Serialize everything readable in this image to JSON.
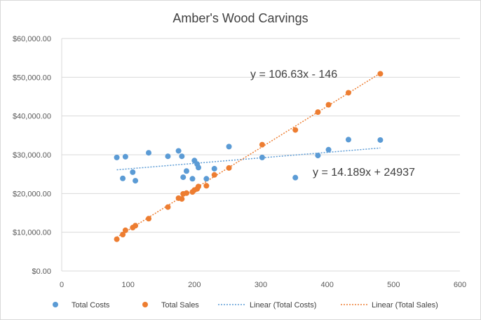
{
  "chart_data": {
    "type": "scatter",
    "title": "Amber's Wood Carvings",
    "xlim": [
      0,
      600
    ],
    "ylim": [
      0,
      60000
    ],
    "x_ticks": [
      "0",
      "100",
      "200",
      "300",
      "400",
      "500",
      "600"
    ],
    "y_ticks": [
      "$0.00",
      "$10,000.00",
      "$20,000.00",
      "$30,000.00",
      "$40,000.00",
      "$50,000.00",
      "$60,000.00"
    ],
    "grid": "horizontal",
    "legend_position": "bottom",
    "series": [
      {
        "name": "Total Costs",
        "color": "#5b9bd5",
        "points": [
          [
            83,
            29300
          ],
          [
            92,
            23900
          ],
          [
            96,
            29500
          ],
          [
            107,
            25500
          ],
          [
            111,
            23300
          ],
          [
            131,
            30500
          ],
          [
            160,
            29600
          ],
          [
            176,
            31000
          ],
          [
            181,
            29600
          ],
          [
            183,
            24200
          ],
          [
            188,
            25800
          ],
          [
            197,
            23800
          ],
          [
            200,
            28500
          ],
          [
            204,
            27600
          ],
          [
            206,
            26700
          ],
          [
            218,
            23800
          ],
          [
            230,
            26400
          ],
          [
            252,
            32100
          ],
          [
            302,
            29300
          ],
          [
            352,
            24100
          ],
          [
            386,
            29800
          ],
          [
            402,
            31300
          ],
          [
            432,
            33900
          ],
          [
            480,
            33800
          ]
        ],
        "trendline": {
          "name": "Linear (Total Costs)",
          "slope": 14.189,
          "intercept": 24937,
          "equation": "y = 14.189x + 24937"
        }
      },
      {
        "name": "Total Sales",
        "color": "#ed7d31",
        "points": [
          [
            83,
            8200
          ],
          [
            92,
            9400
          ],
          [
            96,
            10500
          ],
          [
            107,
            11200
          ],
          [
            111,
            11700
          ],
          [
            131,
            13500
          ],
          [
            160,
            16500
          ],
          [
            176,
            18800
          ],
          [
            181,
            18600
          ],
          [
            183,
            19900
          ],
          [
            188,
            20100
          ],
          [
            197,
            20400
          ],
          [
            200,
            20900
          ],
          [
            204,
            21200
          ],
          [
            206,
            21800
          ],
          [
            218,
            22000
          ],
          [
            230,
            24800
          ],
          [
            252,
            26600
          ],
          [
            302,
            32600
          ],
          [
            352,
            36400
          ],
          [
            386,
            41000
          ],
          [
            402,
            42900
          ],
          [
            432,
            46000
          ],
          [
            480,
            50900
          ]
        ],
        "trendline": {
          "name": "Linear (Total Sales)",
          "slope": 106.63,
          "intercept": -146,
          "equation": "y = 106.63x - 146"
        }
      }
    ]
  }
}
